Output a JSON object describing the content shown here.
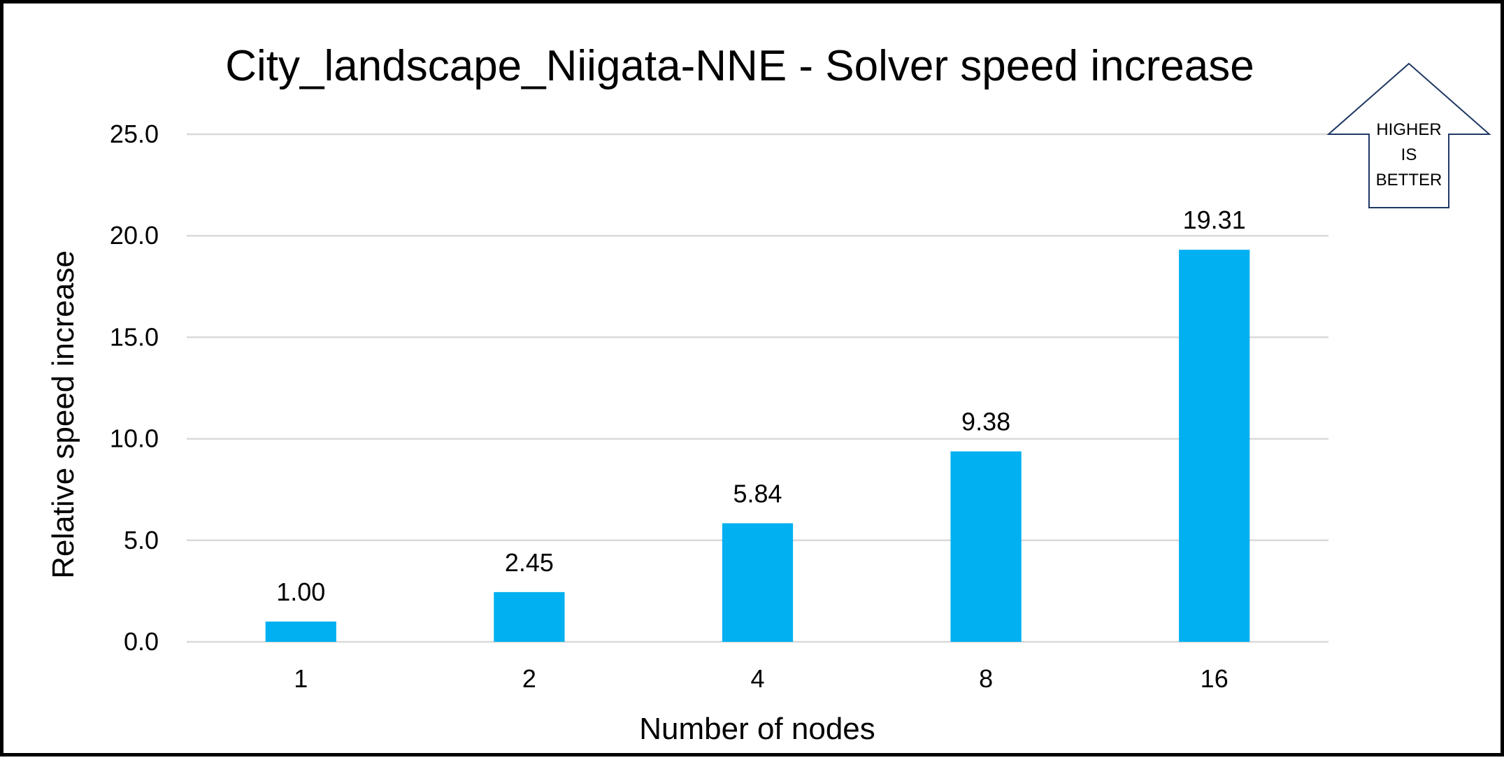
{
  "chart_data": {
    "type": "bar",
    "title": "City_landscape_Niigata-NNE - Solver speed increase",
    "xlabel": "Number of nodes",
    "ylabel": "Relative speed increase",
    "categories": [
      "1",
      "2",
      "4",
      "8",
      "16"
    ],
    "values": [
      1.0,
      2.45,
      5.84,
      9.38,
      19.31
    ],
    "data_labels": [
      "1.00",
      "2.45",
      "5.84",
      "9.38",
      "19.31"
    ],
    "ylim": [
      0,
      25
    ],
    "yticks": [
      0,
      5,
      10,
      15,
      20,
      25
    ],
    "ytick_labels": [
      "0.0",
      "5.0",
      "10.0",
      "15.0",
      "20.0",
      "25.0"
    ],
    "grid": true,
    "legend": "none",
    "bar_color": "#00b0f0",
    "annotation": {
      "shape": "up-arrow",
      "lines": [
        "HIGHER",
        "IS",
        "BETTER"
      ],
      "outline_color": "#1f3864"
    }
  }
}
